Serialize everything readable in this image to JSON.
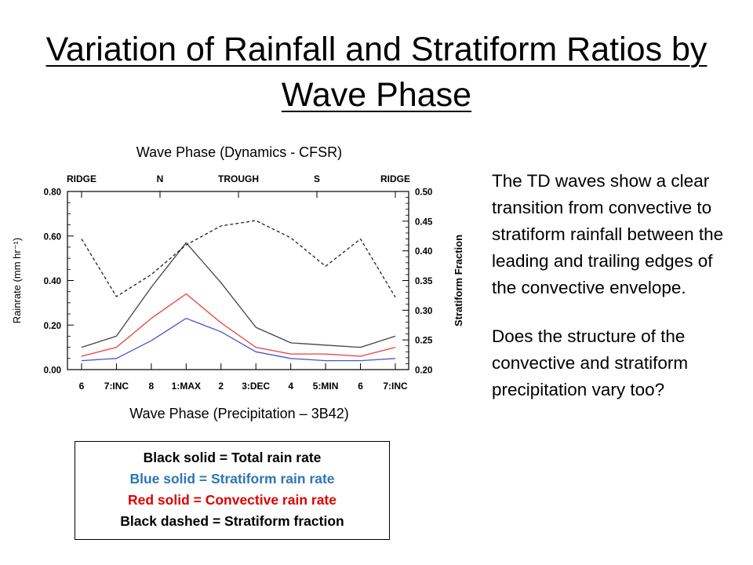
{
  "slide": {
    "title": "Variation of Rainfall and Stratiform Ratios by Wave Phase",
    "paragraphs": [
      "The TD waves show a clear transition from convective to stratiform rainfall between the leading and trailing edges of the convective envelope.",
      "Does the structure of the convective and stratiform precipitation vary too?"
    ]
  },
  "legend": {
    "items": [
      {
        "text": "Black solid = Total rain rate",
        "color": "#000000"
      },
      {
        "text": "Blue solid = Stratiform rain rate",
        "color": "#2e75b6"
      },
      {
        "text": "Red solid = Convective rain rate",
        "color": "#e00000"
      },
      {
        "text": "Black dashed = Stratiform fraction",
        "color": "#000000"
      }
    ]
  },
  "chart_data": {
    "type": "line",
    "top_axis_title": "Wave Phase (Dynamics - CFSR)",
    "bottom_axis_title": "Wave Phase (Precipitation – 3B42)",
    "ylabel": "Rainrate (mm hr⁻¹)",
    "y2label": "Stratiform Fraction",
    "x_categories": [
      "6",
      "7:INC",
      "8",
      "1:MAX",
      "2",
      "3:DEC",
      "4",
      "5:MIN",
      "6",
      "7:INC"
    ],
    "top_categories": [
      "RIDGE",
      "N",
      "TROUGH",
      "S",
      "RIDGE"
    ],
    "ylim": [
      0,
      0.8
    ],
    "yticks": [
      "0.00",
      "0.20",
      "0.40",
      "0.60",
      "0.80"
    ],
    "y2lim": [
      0.2,
      0.5
    ],
    "y2ticks": [
      "0.20",
      "0.25",
      "0.30",
      "0.35",
      "0.40",
      "0.45",
      "0.50"
    ],
    "series": [
      {
        "axis": "left",
        "style": "solid",
        "color": "#444444",
        "values": [
          0.1,
          0.15,
          0.37,
          0.57,
          0.39,
          0.19,
          0.12,
          0.11,
          0.1,
          0.15
        ]
      },
      {
        "axis": "left",
        "style": "solid",
        "color": "#e8403a",
        "values": [
          0.06,
          0.1,
          0.23,
          0.34,
          0.21,
          0.1,
          0.07,
          0.07,
          0.06,
          0.1
        ]
      },
      {
        "axis": "left",
        "style": "solid",
        "color": "#4a55cc",
        "values": [
          0.04,
          0.05,
          0.13,
          0.23,
          0.17,
          0.08,
          0.05,
          0.04,
          0.04,
          0.05
        ]
      },
      {
        "axis": "right",
        "style": "dashed",
        "color": "#222222",
        "values": [
          0.42,
          0.323,
          0.36,
          0.41,
          0.442,
          0.451,
          0.422,
          0.374,
          0.42,
          0.322
        ]
      }
    ]
  }
}
